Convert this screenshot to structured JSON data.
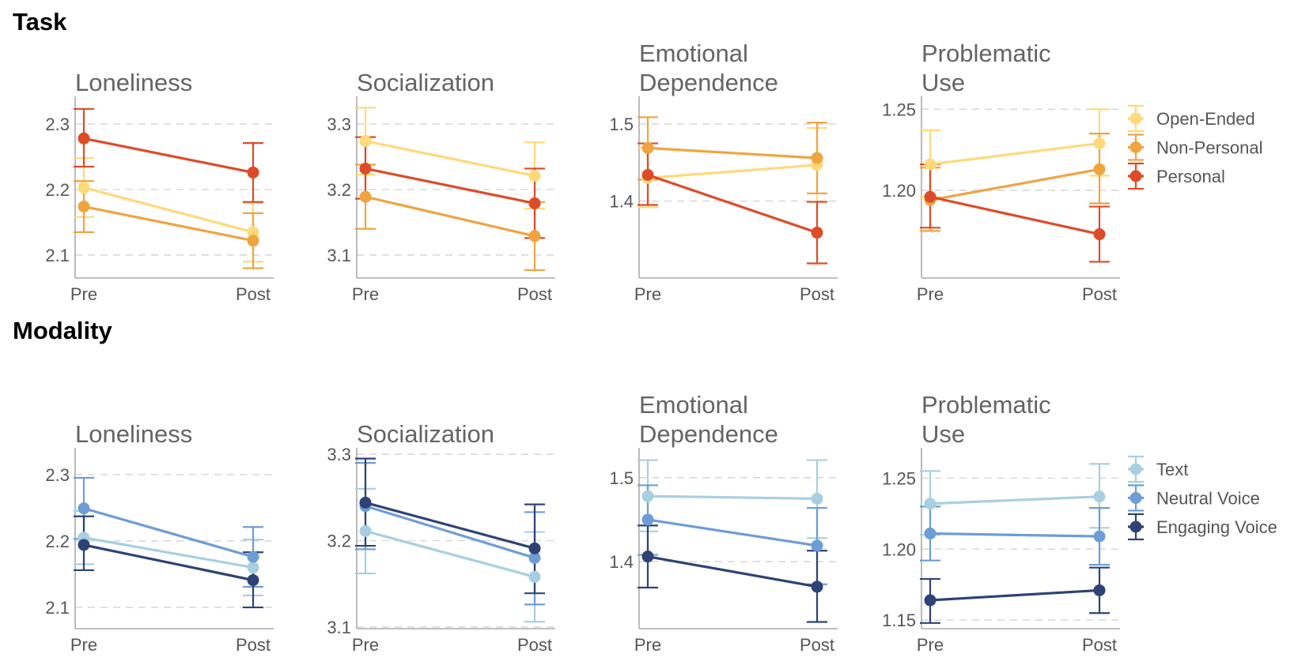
{
  "sections": [
    {
      "title": "Task"
    },
    {
      "title": "Modality"
    }
  ],
  "chart_data": [
    {
      "type": "line",
      "group": "task",
      "title": "Loneliness",
      "categories": [
        "Pre",
        "Post"
      ],
      "ylim": [
        2.065,
        2.335
      ],
      "yticks": [
        2.1,
        2.2,
        2.3
      ],
      "ytick_labels": [
        "2.1",
        "2.2",
        "2.3"
      ],
      "grid": true,
      "series": [
        {
          "name": "Open-Ended",
          "values": [
            2.203,
            2.135
          ],
          "err": [
            [
              2.158,
              2.248
            ],
            [
              2.09,
              2.18
            ]
          ]
        },
        {
          "name": "Non-Personal",
          "values": [
            2.174,
            2.122
          ],
          "err": [
            [
              2.135,
              2.213
            ],
            [
              2.08,
              2.164
            ]
          ]
        },
        {
          "name": "Personal",
          "values": [
            2.278,
            2.226
          ],
          "err": [
            [
              2.235,
              2.323
            ],
            [
              2.181,
              2.271
            ]
          ]
        }
      ]
    },
    {
      "type": "line",
      "group": "task",
      "title": "Socialization",
      "categories": [
        "Pre",
        "Post"
      ],
      "ylim": [
        3.065,
        3.335
      ],
      "yticks": [
        3.1,
        3.2,
        3.3
      ],
      "ytick_labels": [
        "3.1",
        "3.2",
        "3.3"
      ],
      "grid": true,
      "series": [
        {
          "name": "Open-Ended",
          "values": [
            3.274,
            3.221
          ],
          "err": [
            [
              3.223,
              3.325
            ],
            [
              3.171,
              3.272
            ]
          ]
        },
        {
          "name": "Non-Personal",
          "values": [
            3.189,
            3.129
          ],
          "err": [
            [
              3.14,
              3.238
            ],
            [
              3.077,
              3.181
            ]
          ]
        },
        {
          "name": "Personal",
          "values": [
            3.232,
            3.179
          ],
          "err": [
            [
              3.186,
              3.28
            ],
            [
              3.126,
              3.232
            ]
          ]
        }
      ]
    },
    {
      "type": "line",
      "group": "task",
      "title": "Emotional\nDependence",
      "categories": [
        "Pre",
        "Post"
      ],
      "ylim": [
        1.3,
        1.53
      ],
      "yticks": [
        1.4,
        1.5
      ],
      "ytick_labels": [
        "1.4",
        "1.5"
      ],
      "grid": true,
      "series": [
        {
          "name": "Open-Ended",
          "values": [
            1.43,
            1.447
          ],
          "err": [
            [
              1.392,
              1.469
            ],
            [
              1.399,
              1.495
            ]
          ]
        },
        {
          "name": "Non-Personal",
          "values": [
            1.469,
            1.456
          ],
          "err": [
            [
              1.428,
              1.509
            ],
            [
              1.41,
              1.502
            ]
          ]
        },
        {
          "name": "Personal",
          "values": [
            1.434,
            1.359
          ],
          "err": [
            [
              1.395,
              1.475
            ],
            [
              1.319,
              1.399
            ]
          ]
        }
      ]
    },
    {
      "type": "line",
      "group": "task",
      "title": "Problematic\nUse",
      "categories": [
        "Pre",
        "Post"
      ],
      "ylim": [
        1.146,
        1.255
      ],
      "yticks": [
        1.2,
        1.25
      ],
      "ytick_labels": [
        "1.20",
        "1.25"
      ],
      "grid": true,
      "series": [
        {
          "name": "Open-Ended",
          "values": [
            1.216,
            1.229
          ],
          "err": [
            [
              1.196,
              1.237
            ],
            [
              1.209,
              1.25
            ]
          ]
        },
        {
          "name": "Non-Personal",
          "values": [
            1.194,
            1.213
          ],
          "err": [
            [
              1.175,
              1.214
            ],
            [
              1.192,
              1.235
            ]
          ]
        },
        {
          "name": "Personal",
          "values": [
            1.196,
            1.173
          ],
          "err": [
            [
              1.177,
              1.216
            ],
            [
              1.156,
              1.19
            ]
          ]
        }
      ]
    },
    {
      "type": "line",
      "group": "modality",
      "title": "Loneliness",
      "categories": [
        "Pre",
        "Post"
      ],
      "ylim": [
        2.068,
        2.333
      ],
      "yticks": [
        2.1,
        2.2,
        2.3
      ],
      "ytick_labels": [
        "2.1",
        "2.2",
        "2.3"
      ],
      "grid": true,
      "series": [
        {
          "name": "Text",
          "values": [
            2.205,
            2.16
          ],
          "err": [
            [
              2.165,
              2.245
            ],
            [
              2.118,
              2.202
            ]
          ]
        },
        {
          "name": "Neutral Voice",
          "values": [
            2.249,
            2.176
          ],
          "err": [
            [
              2.203,
              2.295
            ],
            [
              2.131,
              2.221
            ]
          ]
        },
        {
          "name": "Engaging Voice",
          "values": [
            2.194,
            2.141
          ],
          "err": [
            [
              2.156,
              2.237
            ],
            [
              2.1,
              2.183
            ]
          ]
        }
      ]
    },
    {
      "type": "line",
      "group": "modality",
      "title": "Socialization",
      "categories": [
        "Pre",
        "Post"
      ],
      "ylim": [
        3.098,
        3.302
      ],
      "yticks": [
        3.1,
        3.2,
        3.3
      ],
      "ytick_labels": [
        "3.1",
        "3.2",
        "3.3"
      ],
      "grid": true,
      "series": [
        {
          "name": "Text",
          "values": [
            3.211,
            3.158
          ],
          "err": [
            [
              3.162,
              3.26
            ],
            [
              3.106,
              3.21
            ]
          ]
        },
        {
          "name": "Neutral Voice",
          "values": [
            3.24,
            3.18
          ],
          "err": [
            [
              3.19,
              3.29
            ],
            [
              3.126,
              3.233
            ]
          ]
        },
        {
          "name": "Engaging Voice",
          "values": [
            3.244,
            3.191
          ],
          "err": [
            [
              3.194,
              3.295
            ],
            [
              3.139,
              3.242
            ]
          ]
        }
      ]
    },
    {
      "type": "line",
      "group": "modality",
      "title": "Emotional\nDependence",
      "categories": [
        "Pre",
        "Post"
      ],
      "ylim": [
        1.32,
        1.53
      ],
      "yticks": [
        1.4,
        1.5
      ],
      "ytick_labels": [
        "1.4",
        "1.5"
      ],
      "grid": true,
      "series": [
        {
          "name": "Text",
          "values": [
            1.478,
            1.475
          ],
          "err": [
            [
              1.436,
              1.521
            ],
            [
              1.428,
              1.521
            ]
          ]
        },
        {
          "name": "Neutral Voice",
          "values": [
            1.45,
            1.419
          ],
          "err": [
            [
              1.408,
              1.491
            ],
            [
              1.373,
              1.464
            ]
          ]
        },
        {
          "name": "Engaging Voice",
          "values": [
            1.406,
            1.37
          ],
          "err": [
            [
              1.369,
              1.443
            ],
            [
              1.328,
              1.413
            ]
          ]
        }
      ]
    },
    {
      "type": "line",
      "group": "modality",
      "title": "Problematic\nUse",
      "categories": [
        "Pre",
        "Post"
      ],
      "ylim": [
        1.144,
        1.268
      ],
      "yticks": [
        1.15,
        1.2,
        1.25
      ],
      "ytick_labels": [
        "1.15",
        "1.20",
        "1.25"
      ],
      "grid": true,
      "series": [
        {
          "name": "Text",
          "values": [
            1.232,
            1.237
          ],
          "err": [
            [
              1.21,
              1.255
            ],
            [
              1.215,
              1.26
            ]
          ]
        },
        {
          "name": "Neutral Voice",
          "values": [
            1.211,
            1.209
          ],
          "err": [
            [
              1.192,
              1.23
            ],
            [
              1.189,
              1.229
            ]
          ]
        },
        {
          "name": "Engaging Voice",
          "values": [
            1.164,
            1.171
          ],
          "err": [
            [
              1.148,
              1.179
            ],
            [
              1.155,
              1.187
            ]
          ]
        }
      ]
    }
  ],
  "legends": {
    "task": [
      {
        "label": "Open-Ended",
        "color": "#FFD97A"
      },
      {
        "label": "Non-Personal",
        "color": "#F0A440"
      },
      {
        "label": "Personal",
        "color": "#DE4B28"
      }
    ],
    "modality": [
      {
        "label": "Text",
        "color": "#A8CFE0"
      },
      {
        "label": "Neutral Voice",
        "color": "#6E9DD6"
      },
      {
        "label": "Engaging Voice",
        "color": "#2E4275"
      }
    ]
  },
  "colors": {
    "task": [
      "#FFD97A",
      "#F0A440",
      "#DE4B28"
    ],
    "modality": [
      "#A8CFE0",
      "#6E9DD6",
      "#2E4275"
    ]
  }
}
